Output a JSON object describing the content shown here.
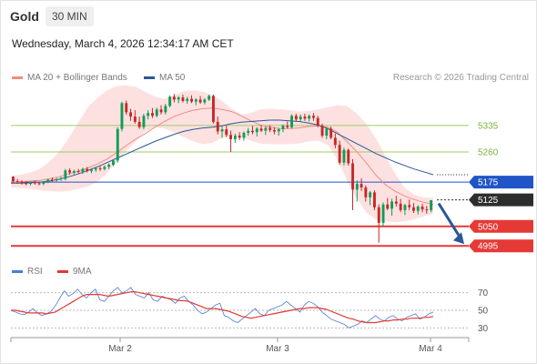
{
  "header": {
    "title": "Gold",
    "interval": "30 MIN",
    "datetime": "Wednesday, March 4, 2026 12:34:17 AM CET"
  },
  "legend": {
    "ma20": "MA 20 + Bollinger Bands",
    "ma50": "MA 50",
    "rsi": "RSI",
    "ma9": "9MA",
    "research": "Research © 2026 Trading Central"
  },
  "colors": {
    "ma20": "#f28b82",
    "ma50": "#2b5797",
    "band": "#fde1e1",
    "bull": "#0f9d58",
    "bear": "#c62828",
    "resistance": "#9ccc65",
    "pivot": "#1f55c7",
    "support": "#e53935",
    "arrow": "#2b5797",
    "rsi": "#4a7bd8",
    "rsi_ma": "#e53935"
  },
  "chart_data": [
    {
      "type": "candlestick",
      "title": "Gold",
      "price_range": [
        4975,
        5445
      ],
      "x_labels": [
        "Mar 2",
        "Mar 3",
        "Mar 4"
      ],
      "levels": [
        {
          "label": "5335",
          "value": 5335,
          "kind": "resistance"
        },
        {
          "label": "5260",
          "value": 5260,
          "kind": "resistance"
        },
        {
          "label": "5175",
          "value": 5175,
          "kind": "pivot"
        },
        {
          "label": "5125",
          "value": 5125,
          "kind": "last"
        },
        {
          "label": "5050",
          "value": 5050,
          "kind": "support"
        },
        {
          "label": "4995",
          "value": 4995,
          "kind": "support"
        }
      ],
      "series": [
        {
          "name": "MA 20 + Bollinger Bands"
        },
        {
          "name": "MA 50"
        }
      ],
      "candles": [
        [
          5190,
          5192,
          5172,
          5178
        ],
        [
          5178,
          5184,
          5170,
          5176
        ],
        [
          5176,
          5180,
          5168,
          5172
        ],
        [
          5172,
          5178,
          5166,
          5170
        ],
        [
          5170,
          5176,
          5166,
          5174
        ],
        [
          5174,
          5180,
          5168,
          5172
        ],
        [
          5172,
          5176,
          5166,
          5170
        ],
        [
          5170,
          5178,
          5166,
          5176
        ],
        [
          5176,
          5184,
          5172,
          5182
        ],
        [
          5182,
          5188,
          5176,
          5180
        ],
        [
          5180,
          5186,
          5174,
          5184
        ],
        [
          5184,
          5190,
          5178,
          5186
        ],
        [
          5184,
          5212,
          5180,
          5208
        ],
        [
          5208,
          5214,
          5196,
          5202
        ],
        [
          5202,
          5210,
          5196,
          5206
        ],
        [
          5206,
          5212,
          5200,
          5204
        ],
        [
          5204,
          5216,
          5198,
          5212
        ],
        [
          5212,
          5218,
          5202,
          5206
        ],
        [
          5206,
          5214,
          5200,
          5210
        ],
        [
          5210,
          5218,
          5204,
          5214
        ],
        [
          5214,
          5220,
          5206,
          5212
        ],
        [
          5212,
          5222,
          5208,
          5218
        ],
        [
          5218,
          5228,
          5212,
          5224
        ],
        [
          5224,
          5240,
          5220,
          5236
        ],
        [
          5236,
          5330,
          5230,
          5325
        ],
        [
          5325,
          5402,
          5318,
          5398
        ],
        [
          5398,
          5405,
          5365,
          5372
        ],
        [
          5372,
          5382,
          5348,
          5360
        ],
        [
          5360,
          5378,
          5340,
          5345
        ],
        [
          5345,
          5360,
          5325,
          5330
        ],
        [
          5330,
          5368,
          5324,
          5362
        ],
        [
          5362,
          5378,
          5352,
          5370
        ],
        [
          5370,
          5384,
          5356,
          5362
        ],
        [
          5362,
          5385,
          5358,
          5380
        ],
        [
          5380,
          5392,
          5366,
          5372
        ],
        [
          5372,
          5396,
          5366,
          5390
        ],
        [
          5390,
          5420,
          5386,
          5416
        ],
        [
          5416,
          5424,
          5400,
          5408
        ],
        [
          5408,
          5418,
          5398,
          5414
        ],
        [
          5414,
          5422,
          5400,
          5404
        ],
        [
          5404,
          5416,
          5396,
          5410
        ],
        [
          5410,
          5420,
          5398,
          5402
        ],
        [
          5402,
          5412,
          5392,
          5408
        ],
        [
          5408,
          5418,
          5396,
          5400
        ],
        [
          5400,
          5412,
          5394,
          5408
        ],
        [
          5408,
          5422,
          5404,
          5418
        ],
        [
          5418,
          5422,
          5340,
          5345
        ],
        [
          5345,
          5360,
          5310,
          5318
        ],
        [
          5318,
          5332,
          5300,
          5324
        ],
        [
          5324,
          5334,
          5302,
          5308
        ],
        [
          5308,
          5320,
          5260,
          5296
        ],
        [
          5296,
          5312,
          5286,
          5306
        ],
        [
          5306,
          5316,
          5294,
          5300
        ],
        [
          5300,
          5318,
          5292,
          5314
        ],
        [
          5314,
          5328,
          5306,
          5320
        ],
        [
          5320,
          5334,
          5310,
          5316
        ],
        [
          5316,
          5330,
          5304,
          5326
        ],
        [
          5326,
          5336,
          5316,
          5320
        ],
        [
          5320,
          5332,
          5308,
          5328
        ],
        [
          5328,
          5336,
          5316,
          5322
        ],
        [
          5322,
          5330,
          5310,
          5318
        ],
        [
          5318,
          5328,
          5306,
          5324
        ],
        [
          5324,
          5338,
          5316,
          5334
        ],
        [
          5334,
          5346,
          5326,
          5330
        ],
        [
          5330,
          5366,
          5326,
          5362
        ],
        [
          5362,
          5368,
          5346,
          5352
        ],
        [
          5352,
          5366,
          5344,
          5360
        ],
        [
          5360,
          5368,
          5348,
          5354
        ],
        [
          5354,
          5366,
          5346,
          5362
        ],
        [
          5362,
          5370,
          5348,
          5356
        ],
        [
          5356,
          5362,
          5330,
          5334
        ],
        [
          5334,
          5340,
          5300,
          5306
        ],
        [
          5306,
          5330,
          5296,
          5326
        ],
        [
          5326,
          5332,
          5296,
          5300
        ],
        [
          5300,
          5312,
          5270,
          5280
        ],
        [
          5280,
          5292,
          5224,
          5230
        ],
        [
          5230,
          5272,
          5222,
          5266
        ],
        [
          5266,
          5270,
          5222,
          5228
        ],
        [
          5228,
          5240,
          5096,
          5154
        ],
        [
          5154,
          5180,
          5120,
          5170
        ],
        [
          5170,
          5186,
          5150,
          5160
        ],
        [
          5160,
          5166,
          5120,
          5132
        ],
        [
          5132,
          5150,
          5110,
          5146
        ],
        [
          5146,
          5152,
          5096,
          5104
        ],
        [
          5104,
          5112,
          5004,
          5060
        ],
        [
          5060,
          5118,
          5050,
          5112
        ],
        [
          5112,
          5130,
          5096,
          5100
        ],
        [
          5100,
          5128,
          5080,
          5120
        ],
        [
          5120,
          5136,
          5106,
          5114
        ],
        [
          5114,
          5128,
          5090,
          5096
        ],
        [
          5096,
          5114,
          5082,
          5110
        ],
        [
          5110,
          5126,
          5096,
          5104
        ],
        [
          5104,
          5116,
          5088,
          5094
        ],
        [
          5094,
          5110,
          5084,
          5106
        ],
        [
          5106,
          5114,
          5090,
          5098
        ],
        [
          5098,
          5108,
          5086,
          5096
        ],
        [
          5096,
          5124,
          5090,
          5124
        ]
      ],
      "bands": {
        "x_labels_positions_note": "",
        "ma20": [
          5174,
          5176,
          5178,
          5180,
          5184,
          5190,
          5198,
          5206,
          5215,
          5226,
          5240,
          5258,
          5278,
          5296,
          5312,
          5330,
          5346,
          5360,
          5370,
          5378,
          5382,
          5384,
          5380,
          5374,
          5362,
          5348,
          5336,
          5330,
          5326,
          5326,
          5328,
          5332,
          5334,
          5330,
          5316,
          5290,
          5262,
          5230,
          5196,
          5168,
          5150,
          5136,
          5126,
          5118,
          5112
        ],
        "upper": [
          5192,
          5196,
          5202,
          5212,
          5232,
          5260,
          5298,
          5342,
          5386,
          5412,
          5434,
          5446,
          5448,
          5444,
          5430,
          5416,
          5410,
          5420,
          5432,
          5434,
          5430,
          5420,
          5404,
          5382,
          5366,
          5370,
          5380,
          5382,
          5380,
          5378,
          5374,
          5376,
          5380,
          5386,
          5392,
          5390,
          5370,
          5340,
          5300,
          5250,
          5200,
          5160,
          5140,
          5132,
          5130
        ],
        "lower": [
          5160,
          5158,
          5156,
          5152,
          5150,
          5148,
          5150,
          5156,
          5162,
          5176,
          5200,
          5230,
          5262,
          5290,
          5318,
          5330,
          5326,
          5316,
          5302,
          5290,
          5282,
          5286,
          5300,
          5306,
          5302,
          5292,
          5284,
          5282,
          5282,
          5282,
          5284,
          5290,
          5292,
          5280,
          5240,
          5180,
          5130,
          5090,
          5070,
          5064,
          5062,
          5064,
          5070,
          5078,
          5086
        ],
        "ma50": [
          5172,
          5172,
          5173,
          5175,
          5178,
          5183,
          5190,
          5198,
          5208,
          5218,
          5230,
          5242,
          5254,
          5266,
          5278,
          5290,
          5300,
          5310,
          5318,
          5324,
          5328,
          5330,
          5334,
          5340,
          5344,
          5346,
          5348,
          5350,
          5350,
          5348,
          5346,
          5342,
          5336,
          5326,
          5312,
          5298,
          5284,
          5270,
          5256,
          5244,
          5232,
          5222,
          5212,
          5204,
          5196
        ]
      }
    },
    {
      "type": "line",
      "title": "RSI",
      "ylim": [
        20,
        80
      ],
      "y_ticks": [
        "70",
        "50",
        "30"
      ],
      "series": [
        {
          "name": "RSI",
          "values": [
            50,
            48,
            46,
            45,
            48,
            52,
            47,
            44,
            46,
            49,
            55,
            64,
            72,
            66,
            69,
            74,
            68,
            64,
            70,
            74,
            62,
            60,
            66,
            72,
            76,
            70,
            72,
            76,
            68,
            66,
            64,
            70,
            62,
            60,
            66,
            64,
            62,
            58,
            64,
            66,
            60,
            56,
            50,
            46,
            48,
            52,
            56,
            58,
            44,
            42,
            38,
            36,
            40,
            44,
            48,
            52,
            46,
            44,
            50,
            52,
            54,
            56,
            60,
            56,
            52,
            48,
            56,
            60,
            58,
            54,
            48,
            44,
            40,
            38,
            36,
            34,
            30,
            32,
            34,
            38,
            36,
            40,
            44,
            40,
            38,
            42,
            44,
            40,
            38,
            42,
            44,
            46,
            40,
            42,
            46,
            48
          ]
        },
        {
          "name": "9MA",
          "values": [
            50,
            50,
            49,
            48,
            47,
            47,
            47,
            47,
            46,
            47,
            48,
            51,
            54,
            57,
            60,
            63,
            66,
            68,
            68,
            68,
            68,
            67,
            66,
            67,
            68,
            69,
            70,
            71,
            71,
            70,
            69,
            68,
            67,
            66,
            65,
            64,
            63,
            62,
            61,
            61,
            60,
            58,
            56,
            54,
            52,
            52,
            52,
            51,
            50,
            49,
            47,
            45,
            43,
            42,
            41,
            42,
            43,
            44,
            45,
            46,
            47,
            48,
            49,
            50,
            51,
            52,
            52,
            53,
            53,
            53,
            52,
            51,
            49,
            47,
            45,
            43,
            41,
            40,
            38,
            37,
            36,
            36,
            36,
            37,
            38,
            38,
            39,
            39,
            40,
            40,
            41,
            41,
            41,
            42,
            42,
            43
          ]
        }
      ]
    }
  ]
}
